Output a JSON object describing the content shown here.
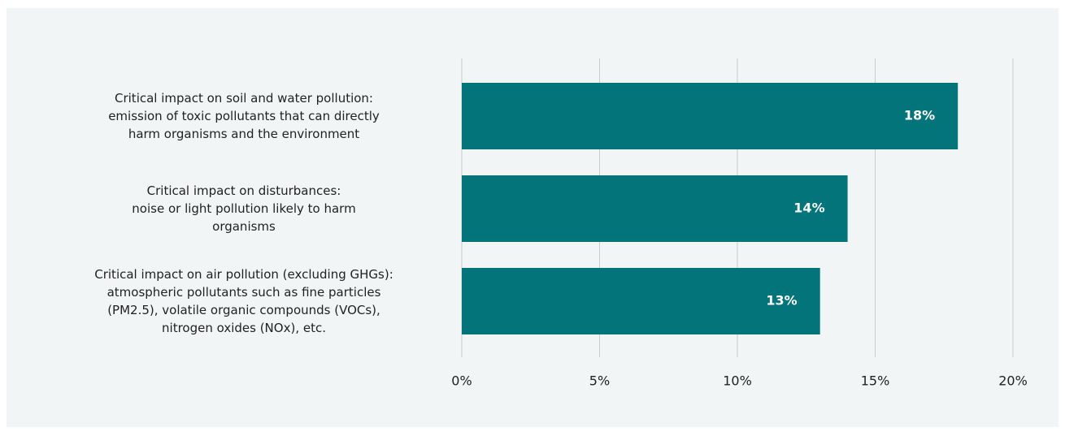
{
  "chart_data": {
    "type": "bar",
    "orientation": "horizontal",
    "categories": [
      "Critical impact on soil and water pollution:\nemission of toxic pollutants that can directly\nharm organisms and the environment",
      "Critical impact on disturbances:\nnoise or light pollution likely to harm\norganisms",
      "Critical impact on air pollution (excluding GHGs):\natmospheric pollutants such as fine particles\n(PM2.5), volatile organic compounds (VOCs),\nnitrogen oxides (NOx), etc."
    ],
    "values": [
      18,
      14,
      13
    ],
    "value_labels": [
      "18%",
      "14%",
      "13%"
    ],
    "color": "#02747a",
    "xlim": [
      0,
      20
    ],
    "xticks": [
      {
        "value": 0,
        "label": "0%"
      },
      {
        "value": 5,
        "label": "5%"
      },
      {
        "value": 10,
        "label": "10%"
      },
      {
        "value": 15,
        "label": "15%"
      },
      {
        "value": 20,
        "label": "20%"
      }
    ],
    "grid": true
  }
}
